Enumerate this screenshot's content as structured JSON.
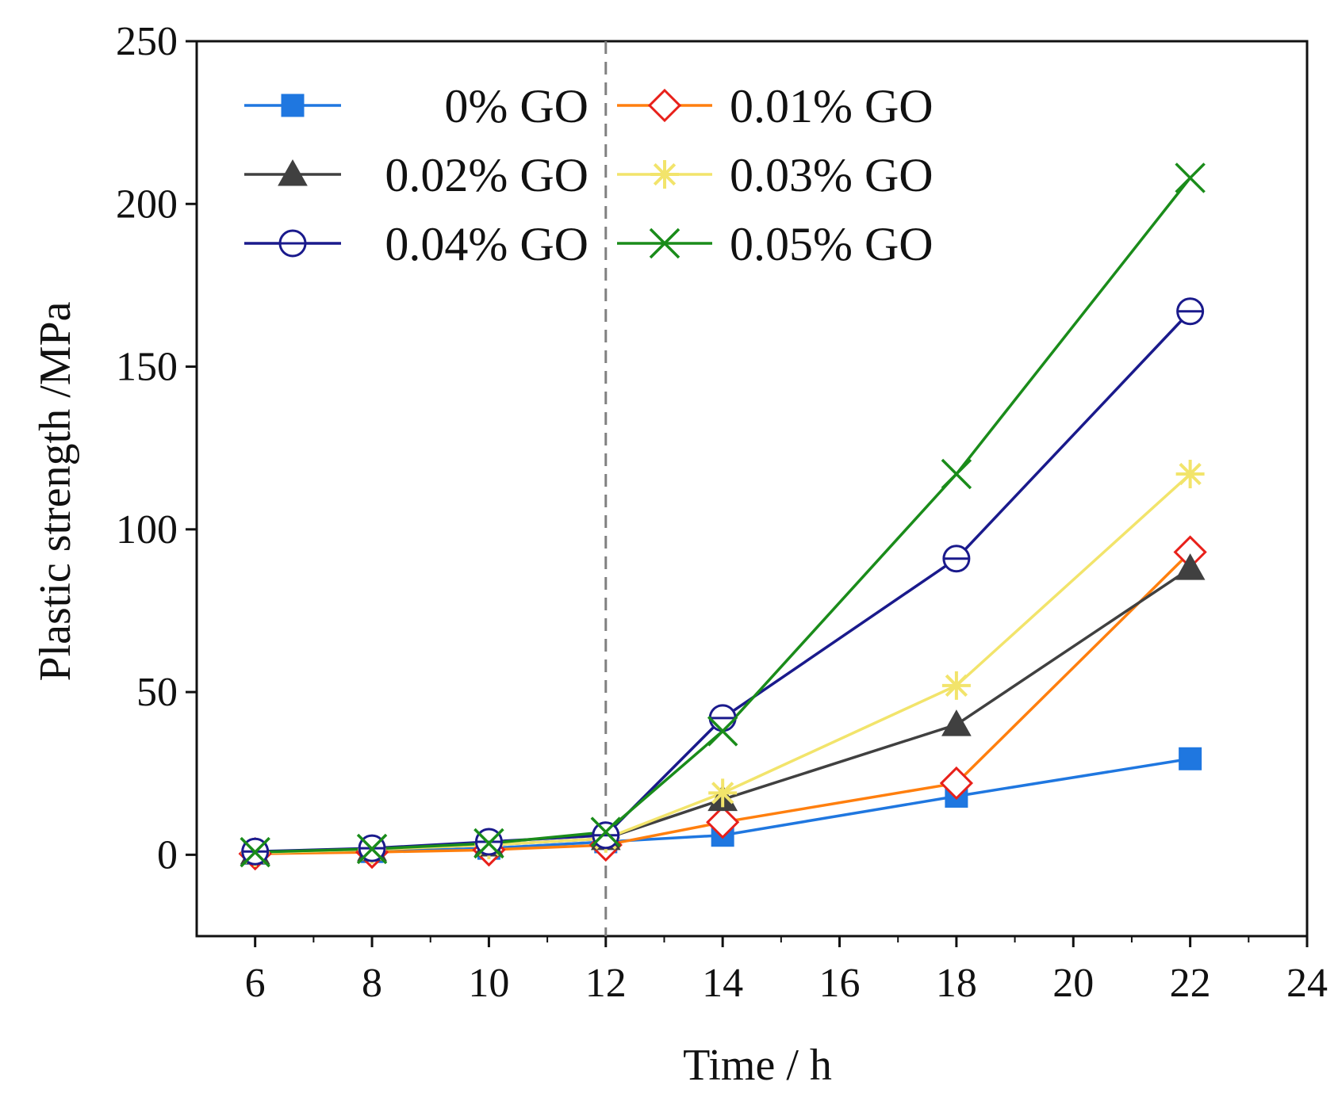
{
  "chart_data": {
    "type": "line",
    "title": "",
    "xlabel": "Time / h",
    "ylabel": "Plastic strength /MPa",
    "xlim": [
      5,
      24
    ],
    "ylim": [
      -25,
      250
    ],
    "xticks": [
      6,
      8,
      10,
      12,
      14,
      16,
      18,
      20,
      22,
      24
    ],
    "yticks": [
      0,
      50,
      100,
      150,
      200,
      250
    ],
    "grid": false,
    "legend_position": "top-left",
    "reference_line": {
      "x": 12,
      "style": "dashed",
      "color": "#808080"
    },
    "x": [
      6,
      8,
      10,
      12,
      14,
      18,
      22
    ],
    "series": [
      {
        "name": "0% GO",
        "color": "#1f77e0",
        "marker": "square-filled",
        "values": [
          0.5,
          1.0,
          2.0,
          4.0,
          6.0,
          18.0,
          29.5
        ]
      },
      {
        "name": "0.01% GO",
        "color": "#ff7f0e",
        "marker_color": "#e8201a",
        "marker": "diamond-open",
        "values": [
          0.3,
          0.8,
          1.5,
          3.0,
          10.0,
          22.0,
          93.0
        ]
      },
      {
        "name": "0.02% GO",
        "color": "#404040",
        "marker": "triangle-filled",
        "values": [
          0.6,
          1.6,
          3.0,
          5.0,
          17.0,
          40.0,
          88.0
        ]
      },
      {
        "name": "0.03% GO",
        "color": "#f2e46b",
        "marker": "asterisk",
        "values": [
          0.6,
          1.6,
          3.0,
          5.0,
          19.0,
          52.0,
          117.0
        ]
      },
      {
        "name": "0.04% GO",
        "color": "#1a1a8c",
        "marker": "circle-bar",
        "values": [
          1.0,
          2.0,
          4.0,
          6.0,
          42.0,
          91.0,
          167.0
        ]
      },
      {
        "name": "0.05% GO",
        "color": "#1a8c1a",
        "marker": "x",
        "values": [
          0.8,
          1.8,
          3.5,
          7.0,
          38.0,
          117.0,
          208.0
        ]
      }
    ]
  }
}
